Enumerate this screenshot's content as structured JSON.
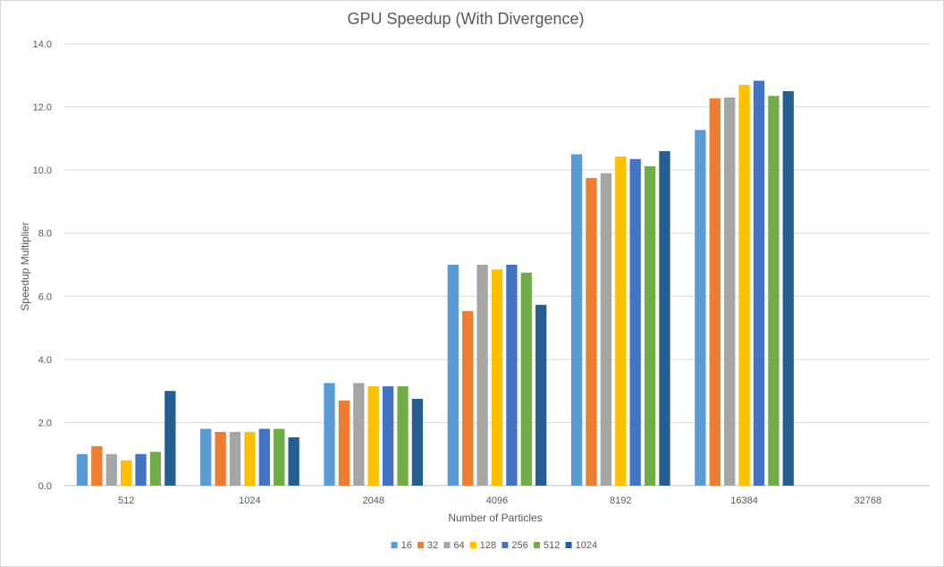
{
  "chart_data": {
    "type": "bar",
    "title": "GPU Speedup (With Divergence)",
    "xlabel": "Number  of Particles",
    "ylabel": "Speedup Multiplier",
    "ylim": [
      0,
      14
    ],
    "yticks": [
      "0.0",
      "2.0",
      "4.0",
      "6.0",
      "8.0",
      "10.0",
      "12.0",
      "14.0"
    ],
    "grid": true,
    "legend_position": "bottom",
    "categories": [
      "512",
      "1024",
      "2048",
      "4096",
      "8192",
      "16384",
      "32768"
    ],
    "series": [
      {
        "name": "16",
        "color": "#5b9bd5",
        "values": [
          1.0,
          1.8,
          3.25,
          7.0,
          10.5,
          11.27,
          null
        ]
      },
      {
        "name": "32",
        "color": "#ed7d31",
        "values": [
          1.25,
          1.7,
          2.7,
          5.53,
          9.75,
          12.27,
          null
        ]
      },
      {
        "name": "64",
        "color": "#a5a5a5",
        "values": [
          1.0,
          1.7,
          3.25,
          7.0,
          9.9,
          12.3,
          null
        ]
      },
      {
        "name": "128",
        "color": "#ffc000",
        "values": [
          0.8,
          1.7,
          3.15,
          6.85,
          10.43,
          12.7,
          null
        ]
      },
      {
        "name": "256",
        "color": "#4472c4",
        "values": [
          1.0,
          1.8,
          3.15,
          7.0,
          10.35,
          12.83,
          null
        ]
      },
      {
        "name": "512",
        "color": "#70ad47",
        "values": [
          1.07,
          1.8,
          3.15,
          6.75,
          10.12,
          12.35,
          null
        ]
      },
      {
        "name": "1024",
        "color": "#255e91",
        "values": [
          3.0,
          1.53,
          2.75,
          5.73,
          10.6,
          12.5,
          null
        ]
      }
    ]
  }
}
